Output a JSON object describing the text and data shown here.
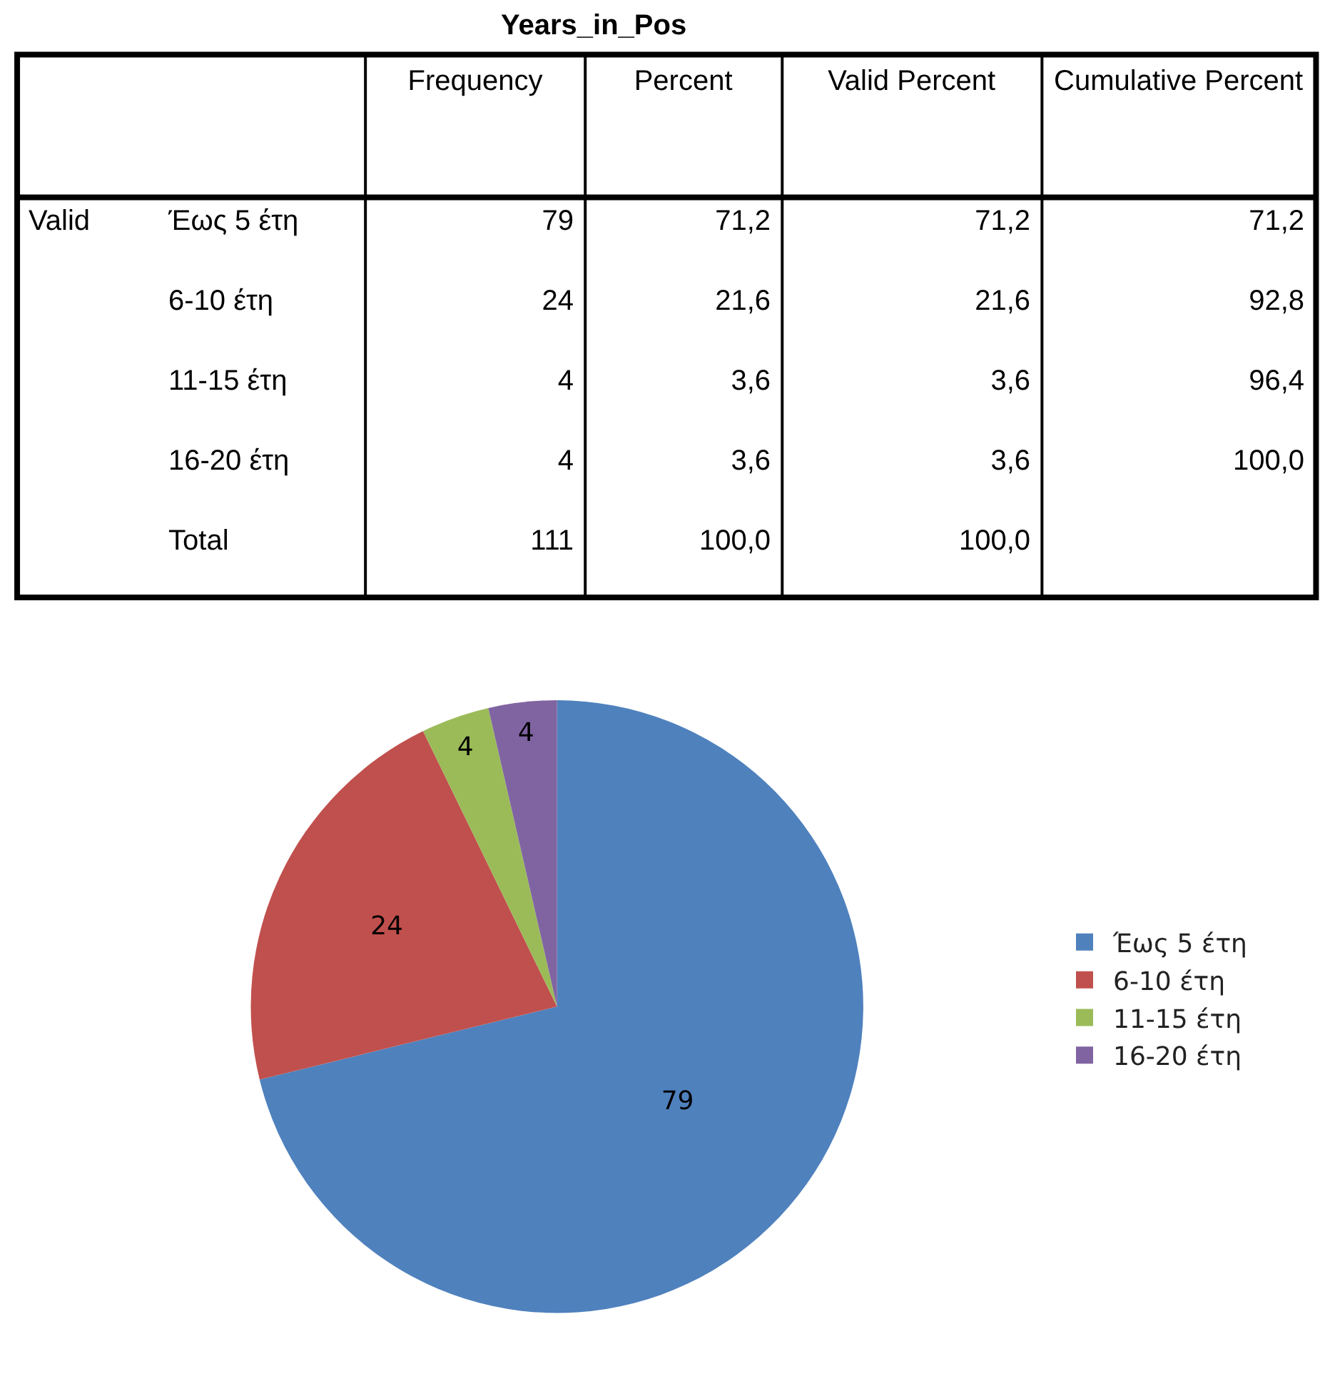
{
  "chart_data": [
    {
      "type": "other",
      "title": "Years_in_Pos",
      "categories": [
        null,
        null,
        "Frequency",
        "Percent",
        "Valid Percent",
        "Cumulative Percent"
      ],
      "cell_labels": [
        [
          "Valid",
          "Έως 5 έτη",
          "79",
          "71,2",
          "71,2",
          "71,2"
        ],
        [
          null,
          "6-10 έτη",
          "24",
          "21,6",
          "21,6",
          "92,8"
        ],
        [
          null,
          "11-15 έτη",
          "4",
          "3,6",
          "3,6",
          "96,4"
        ],
        [
          null,
          "16-20 έτη",
          "4",
          "3,6",
          "3,6",
          "100,0"
        ],
        [
          null,
          "Total",
          "111",
          "100,0",
          "100,0",
          null
        ]
      ]
    },
    {
      "type": "pie",
      "categories": [
        "Έως 5 έτη",
        "6-10 έτη",
        "11-15 έτη",
        "16-20 έτη"
      ],
      "values": [
        79,
        24,
        4,
        4
      ],
      "colors": [
        "#4f81bd",
        "#c0504d",
        "#9bbb59",
        "#8064a2"
      ],
      "data_labels": true,
      "legend": "right"
    }
  ]
}
